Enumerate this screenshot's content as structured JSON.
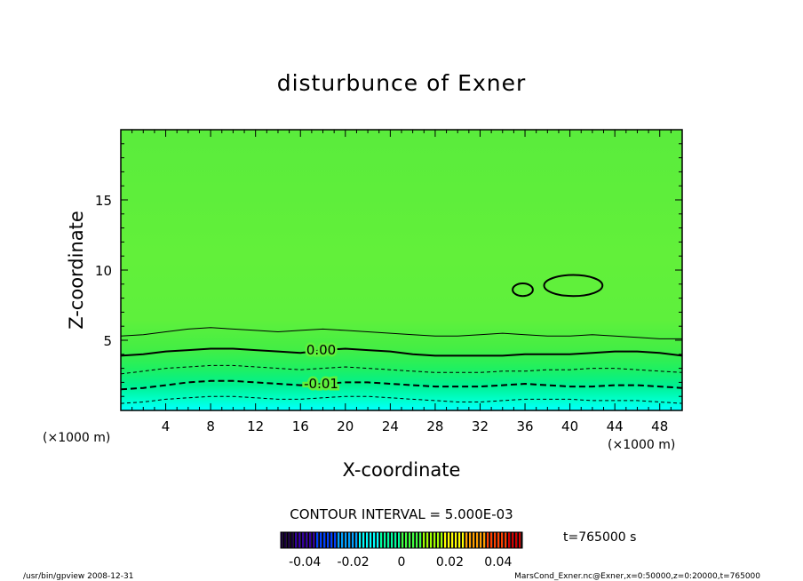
{
  "chart_data": {
    "type": "heatmap",
    "title": "disturbunce of Exner",
    "xlabel": "X-coordinate",
    "ylabel": "Z-coordinate",
    "x_unit": "(×1000 m)",
    "y_unit": "(×1000 m)",
    "xlim": [
      0,
      50
    ],
    "ylim": [
      0,
      20
    ],
    "x_ticks": [
      "4",
      "8",
      "12",
      "16",
      "20",
      "24",
      "28",
      "32",
      "36",
      "40",
      "44",
      "48"
    ],
    "y_ticks": [
      "5",
      "10",
      "15"
    ],
    "contour_interval_label": "CONTOUR INTERVAL = 5.000E-03",
    "contour_labels": [
      "0.00",
      "-0.01"
    ],
    "time_label": "t=765000 s",
    "colorbar": {
      "ticks": [
        "-0.04",
        "-0.02",
        "0",
        "0.02",
        "0.04"
      ],
      "range": [
        -0.05,
        0.05
      ],
      "colors": [
        "#1a0040",
        "#3300a0",
        "#0040ff",
        "#00a0ff",
        "#00ffff",
        "#00ffa0",
        "#40ff40",
        "#a0ff00",
        "#ffff00",
        "#ffa000",
        "#ff4000",
        "#d00000"
      ]
    },
    "contours": [
      {
        "level": 0.005,
        "z": [
          5.3,
          5.4,
          5.6,
          5.8,
          5.9,
          5.8,
          5.7,
          5.6,
          5.7,
          5.8,
          5.7,
          5.6,
          5.5,
          5.4,
          5.3,
          5.3,
          5.4,
          5.5,
          5.4,
          5.3,
          5.3,
          5.4,
          5.3,
          5.2,
          5.1,
          5.1
        ]
      },
      {
        "level": 0.0,
        "z": [
          3.9,
          4.0,
          4.2,
          4.3,
          4.4,
          4.4,
          4.3,
          4.2,
          4.1,
          4.3,
          4.4,
          4.3,
          4.2,
          4.0,
          3.9,
          3.9,
          3.9,
          3.9,
          4.0,
          4.0,
          4.0,
          4.1,
          4.2,
          4.2,
          4.1,
          3.9
        ]
      },
      {
        "level": -0.005,
        "z": [
          2.6,
          2.8,
          3.0,
          3.1,
          3.2,
          3.2,
          3.1,
          3.0,
          2.9,
          3.0,
          3.1,
          3.0,
          2.9,
          2.8,
          2.7,
          2.7,
          2.7,
          2.8,
          2.8,
          2.9,
          2.9,
          3.0,
          3.0,
          2.9,
          2.8,
          2.7
        ]
      },
      {
        "level": -0.01,
        "z": [
          1.5,
          1.6,
          1.8,
          2.0,
          2.1,
          2.1,
          2.0,
          1.9,
          1.8,
          1.9,
          2.0,
          2.0,
          1.9,
          1.8,
          1.7,
          1.7,
          1.7,
          1.8,
          1.9,
          1.8,
          1.7,
          1.7,
          1.8,
          1.8,
          1.7,
          1.6
        ]
      },
      {
        "level": -0.015,
        "z": [
          0.5,
          0.6,
          0.8,
          0.9,
          1.0,
          1.0,
          0.9,
          0.8,
          0.8,
          0.9,
          1.0,
          1.0,
          0.9,
          0.8,
          0.7,
          0.6,
          0.6,
          0.7,
          0.8,
          0.8,
          0.8,
          0.7,
          0.7,
          0.7,
          0.6,
          0.5
        ]
      }
    ],
    "closed_contours": [
      {
        "level": 0.005,
        "cx": 35.8,
        "cz": 8.6,
        "rx": 0.9,
        "rz": 0.45
      },
      {
        "level": 0.005,
        "cx": 40.3,
        "cz": 8.9,
        "rx": 2.6,
        "rz": 0.75
      }
    ]
  },
  "footer": {
    "left": "/usr/bin/gpview   2008-12-31",
    "right": "MarsCond_Exner.nc@Exner,x=0:50000,z=0:20000,t=765000"
  }
}
